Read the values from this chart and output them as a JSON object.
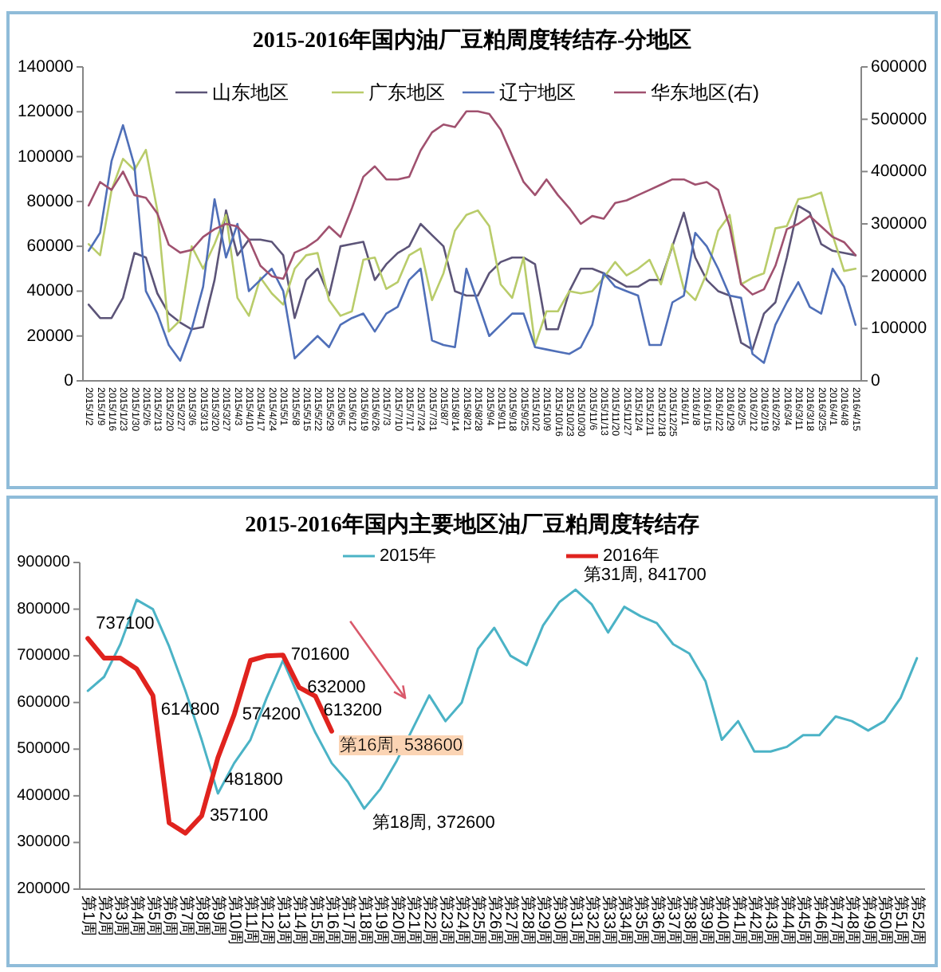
{
  "chart_data": [
    {
      "type": "line",
      "title": "2015-2016年国内油厂豆粕周度转结存-分地区",
      "categories": [
        "2015/1/2",
        "2015/1/9",
        "2015/1/16",
        "2015/1/23",
        "2015/1/30",
        "2015/2/6",
        "2015/2/13",
        "2015/2/20",
        "2015/2/27",
        "2015/3/6",
        "2015/3/13",
        "2015/3/20",
        "2015/3/27",
        "2015/4/3",
        "2015/4/10",
        "2015/4/17",
        "2015/4/24",
        "2015/5/1",
        "2015/5/8",
        "2015/5/15",
        "2015/5/22",
        "2015/5/29",
        "2015/6/5",
        "2015/6/12",
        "2015/6/19",
        "2015/6/26",
        "2015/7/3",
        "2015/7/10",
        "2015/7/17",
        "2015/7/24",
        "2015/7/31",
        "2015/8/7",
        "2015/8/14",
        "2015/8/21",
        "2015/8/28",
        "2015/9/4",
        "2015/9/11",
        "2015/9/18",
        "2015/9/25",
        "2015/10/2",
        "2015/10/9",
        "2015/10/16",
        "2015/10/23",
        "2015/10/30",
        "2015/11/6",
        "2015/11/13",
        "2015/11/20",
        "2015/11/27",
        "2015/12/4",
        "2015/12/11",
        "2015/12/18",
        "2015/12/25",
        "2016/1/1",
        "2016/1/8",
        "2016/1/15",
        "2016/1/22",
        "2016/1/29",
        "2016/2/5",
        "2016/2/12",
        "2016/2/19",
        "2016/2/26",
        "2016/3/4",
        "2016/3/11",
        "2016/3/18",
        "2016/3/25",
        "2016/4/1",
        "2016/4/8",
        "2016/4/15"
      ],
      "series": [
        {
          "name": "山东地区",
          "color": "#5c5478",
          "values": [
            34000,
            28000,
            28000,
            37000,
            57000,
            55000,
            39000,
            30000,
            26000,
            23000,
            24000,
            45000,
            76000,
            56000,
            63000,
            63000,
            62000,
            56000,
            28000,
            45000,
            50000,
            38000,
            60000,
            61000,
            62000,
            45000,
            52000,
            57000,
            60000,
            70000,
            65000,
            60000,
            40000,
            38000,
            38000,
            48000,
            53000,
            55000,
            55000,
            52000,
            23000,
            23000,
            40000,
            50000,
            50000,
            48000,
            45000,
            42000,
            42000,
            45000,
            45000,
            60000,
            75000,
            55000,
            45000,
            40000,
            38000,
            17000,
            14000,
            30000,
            35000,
            55000,
            78000,
            75000,
            61000,
            58000,
            57000,
            56000
          ]
        },
        {
          "name": "广东地区",
          "color": "#b9cc6a",
          "values": [
            61000,
            56000,
            85000,
            99000,
            94000,
            103000,
            76000,
            22000,
            27000,
            60000,
            50000,
            61000,
            74000,
            37000,
            29000,
            46000,
            39000,
            34000,
            50000,
            56000,
            57000,
            36000,
            29000,
            31000,
            54000,
            55000,
            41000,
            44000,
            56000,
            59000,
            36000,
            48000,
            67000,
            74000,
            76000,
            69000,
            43000,
            37000,
            55000,
            16000,
            31000,
            31000,
            40000,
            39000,
            40000,
            46000,
            53000,
            47000,
            50000,
            54000,
            43000,
            61000,
            41000,
            36000,
            48000,
            67000,
            74000,
            43000,
            46000,
            48000,
            68000,
            69000,
            81000,
            82000,
            84000,
            65000,
            49000,
            50000
          ]
        },
        {
          "name": "辽宁地区",
          "color": "#4f6fb8",
          "values": [
            58000,
            66000,
            98000,
            114000,
            96000,
            40000,
            30000,
            16000,
            9000,
            23000,
            42000,
            81000,
            55000,
            70000,
            40000,
            45000,
            50000,
            40000,
            10000,
            15000,
            20000,
            15000,
            25000,
            28000,
            30000,
            22000,
            30000,
            33000,
            45000,
            50000,
            18000,
            16000,
            15000,
            50000,
            35000,
            20000,
            25000,
            30000,
            30000,
            15000,
            14000,
            13000,
            12000,
            15000,
            25000,
            48000,
            42000,
            40000,
            38000,
            16000,
            16000,
            35000,
            38000,
            66000,
            60000,
            50000,
            38000,
            37000,
            12000,
            8000,
            25000,
            35000,
            44000,
            33000,
            30000,
            50000,
            42000,
            25000
          ]
        },
        {
          "name": "华东地区(右)",
          "color": "#a0516f",
          "axis": "y2",
          "values": [
            335000,
            380000,
            365000,
            400000,
            355000,
            350000,
            320000,
            260000,
            245000,
            250000,
            275000,
            290000,
            300000,
            295000,
            270000,
            220000,
            200000,
            195000,
            245000,
            255000,
            270000,
            295000,
            275000,
            330000,
            390000,
            410000,
            385000,
            385000,
            390000,
            440000,
            475000,
            490000,
            485000,
            515000,
            515000,
            510000,
            480000,
            430000,
            380000,
            355000,
            385000,
            355000,
            330000,
            300000,
            315000,
            310000,
            340000,
            345000,
            355000,
            365000,
            375000,
            385000,
            385000,
            375000,
            380000,
            365000,
            295000,
            185000,
            165000,
            175000,
            220000,
            290000,
            300000,
            315000,
            295000,
            275000,
            265000,
            240000
          ]
        }
      ],
      "ylim": [
        0,
        140000
      ],
      "yticks": [
        0,
        20000,
        40000,
        60000,
        80000,
        100000,
        120000,
        140000
      ],
      "y2lim": [
        0,
        600000
      ],
      "y2ticks": [
        0,
        100000,
        200000,
        300000,
        400000,
        500000,
        600000
      ],
      "legend": "top"
    },
    {
      "type": "line",
      "title": "2015-2016年国内主要地区油厂豆粕周度转结存",
      "categories": [
        "第1周",
        "第2周",
        "第3周",
        "第4周",
        "第5周",
        "第6周",
        "第7周",
        "第8周",
        "第9周",
        "第10周",
        "第11周",
        "第12周",
        "第13周",
        "第14周",
        "第15周",
        "第16周",
        "第17周",
        "第18周",
        "第19周",
        "第20周",
        "第21周",
        "第22周",
        "第23周",
        "第24周",
        "第25周",
        "第26周",
        "第27周",
        "第28周",
        "第29周",
        "第30周",
        "第31周",
        "第32周",
        "第33周",
        "第34周",
        "第35周",
        "第36周",
        "第37周",
        "第38周",
        "第39周",
        "第40周",
        "第41周",
        "第42周",
        "第43周",
        "第44周",
        "第45周",
        "第46周",
        "第47周",
        "第48周",
        "第49周",
        "第50周",
        "第51周",
        "第52周"
      ],
      "series": [
        {
          "name": "2015年",
          "color": "#4bb3c6",
          "values": [
            625000,
            655000,
            725000,
            820000,
            800000,
            720000,
            625000,
            520000,
            405000,
            470000,
            520000,
            610000,
            690000,
            610000,
            535000,
            470000,
            430000,
            372600,
            415000,
            475000,
            545000,
            615000,
            560000,
            600000,
            715000,
            760000,
            700000,
            680000,
            765000,
            815000,
            841700,
            810000,
            750000,
            805000,
            785000,
            770000,
            725000,
            705000,
            645000,
            520000,
            560000,
            495000,
            495000,
            505000,
            530000,
            530000,
            570000,
            560000,
            540000,
            560000,
            610000,
            695000
          ],
          "value_labels": [
            null,
            null,
            null,
            null,
            null,
            null,
            null,
            null,
            null,
            null,
            null,
            null,
            null,
            null,
            null,
            null,
            null,
            "第18周, 372600",
            null,
            null,
            null,
            null,
            null,
            null,
            null,
            null,
            null,
            null,
            null,
            null,
            "第31周, 841700",
            null,
            null,
            null,
            null,
            null,
            null,
            null,
            null,
            null,
            null,
            null,
            null,
            null,
            null,
            null,
            null,
            null,
            null,
            null,
            null,
            null
          ]
        },
        {
          "name": "2016年",
          "color": "#e0231e",
          "values": [
            737100,
            695000,
            695000,
            672000,
            614800,
            342000,
            320000,
            357100,
            481800,
            574200,
            690000,
            700000,
            701600,
            632000,
            613200,
            538600,
            null,
            null,
            null,
            null,
            null,
            null,
            null,
            null,
            null,
            null,
            null,
            null,
            null,
            null,
            null,
            null,
            null,
            null,
            null,
            null,
            null,
            null,
            null,
            null,
            null,
            null,
            null,
            null,
            null,
            null,
            null,
            null,
            null,
            null,
            null,
            null
          ],
          "value_labels": [
            "737100",
            null,
            null,
            null,
            "614800",
            null,
            null,
            "357100",
            "481800",
            "574200",
            null,
            null,
            "701600",
            "632000",
            "613200",
            "第16周, 538600",
            null,
            null,
            null,
            null,
            null,
            null,
            null,
            null,
            null,
            null,
            null,
            null,
            null,
            null,
            null,
            null,
            null,
            null,
            null,
            null,
            null,
            null,
            null,
            null,
            null,
            null,
            null,
            null,
            null,
            null,
            null,
            null,
            null,
            null,
            null,
            null
          ]
        }
      ],
      "ylim": [
        200000,
        900000
      ],
      "yticks": [
        200000,
        300000,
        400000,
        500000,
        600000,
        700000,
        800000,
        900000
      ],
      "legend": "top"
    }
  ]
}
